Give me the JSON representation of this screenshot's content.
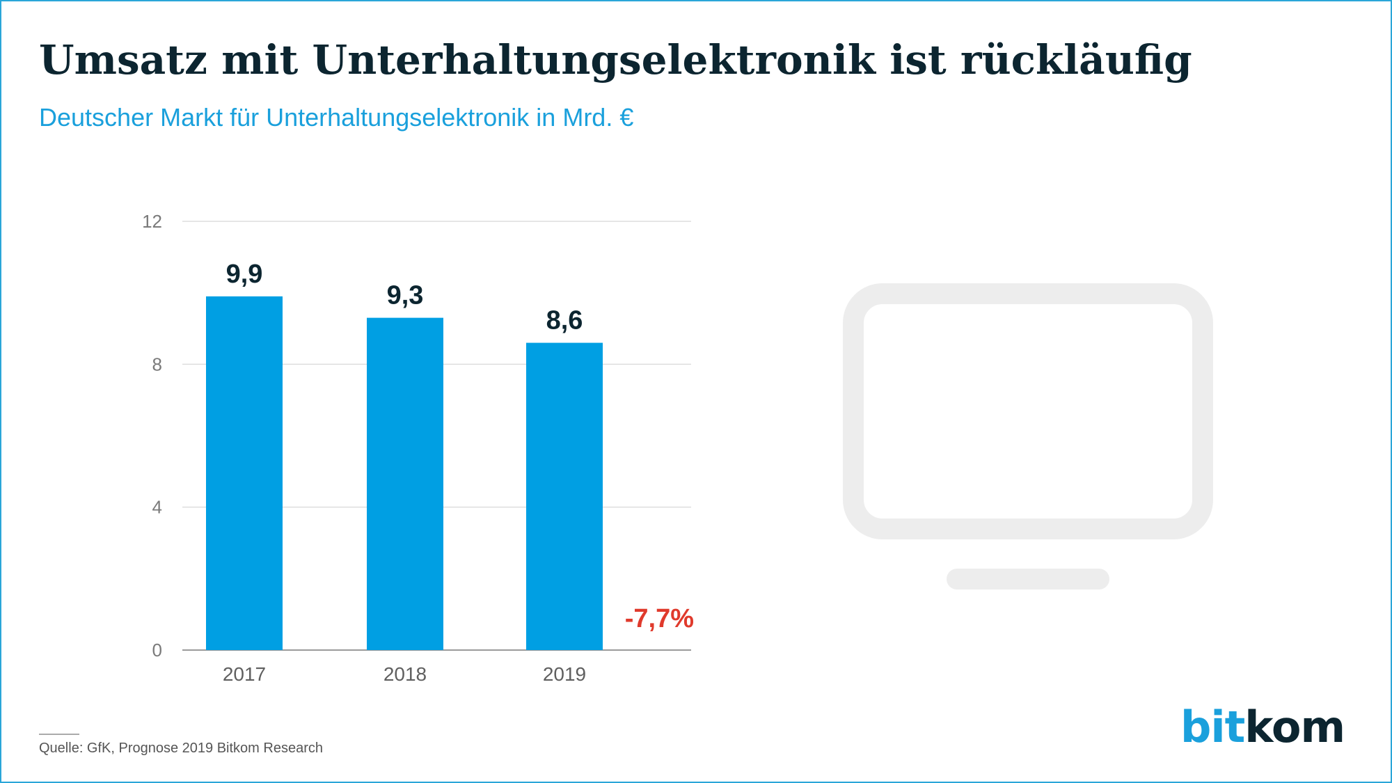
{
  "title": "Umsatz mit Unterhaltungselektronik ist rückläufig",
  "subtitle": "Deutscher Markt für Unterhaltungselektronik in Mrd. €",
  "source": "Quelle: GfK, Prognose 2019 Bitkom Research",
  "logo": {
    "part1": "bit",
    "part2": "kom"
  },
  "colors": {
    "bar": "#009fe3",
    "change": "#e03a2c",
    "icon": "#ededed"
  },
  "icon": "tv-monitor-icon",
  "change_label": "-7,7%",
  "chart_data": {
    "type": "bar",
    "title": "Umsatz mit Unterhaltungselektronik ist rückläufig",
    "subtitle": "Deutscher Markt für Unterhaltungselektronik in Mrd. €",
    "categories": [
      "2017",
      "2018",
      "2019"
    ],
    "values": [
      9.9,
      9.3,
      8.6
    ],
    "value_labels": [
      "9,9",
      "9,3",
      "8,6"
    ],
    "yticks": [
      0,
      4,
      8,
      12
    ],
    "ylim": [
      0,
      12
    ],
    "grid": true,
    "legend": "none",
    "annotation": "-7,7%"
  }
}
